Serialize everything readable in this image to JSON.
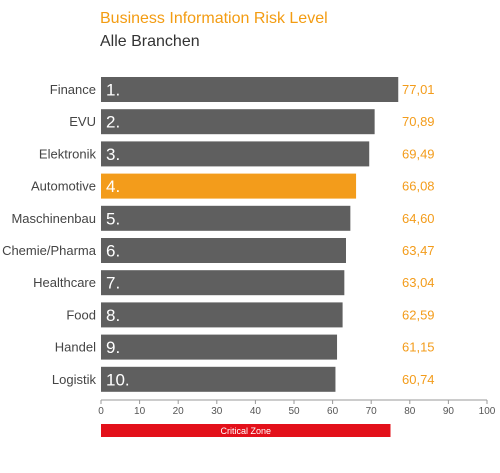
{
  "chart_data": {
    "type": "bar",
    "orientation": "horizontal",
    "title": "Business Information Risk Level",
    "subtitle": "Alle Branchen",
    "categories": [
      "Finance",
      "EVU",
      "Elektronik",
      "Automotive",
      "Maschinenbau",
      "Chemie/Pharma",
      "Healthcare",
      "Food",
      "Handel",
      "Logistik"
    ],
    "ranks": [
      "1.",
      "2.",
      "3.",
      "4.",
      "5.",
      "6.",
      "7.",
      "8.",
      "9.",
      "10."
    ],
    "values": [
      77.01,
      70.89,
      69.49,
      66.08,
      64.6,
      63.47,
      63.04,
      62.59,
      61.15,
      60.74
    ],
    "value_labels": [
      "77,01",
      "70,89",
      "69,49",
      "66,08",
      "64,60",
      "63,47",
      "63,04",
      "62,59",
      "61,15",
      "60,74"
    ],
    "highlight_index": 3,
    "xlim": [
      0,
      100
    ],
    "x_ticks": [
      "0",
      "10",
      "20",
      "30",
      "40",
      "50",
      "60",
      "70",
      "80",
      "90",
      "100"
    ],
    "critical_zone": {
      "label": "Critical  Zone",
      "range": [
        0,
        75
      ]
    },
    "grid": false,
    "legend": "none"
  },
  "colors": {
    "bar": "#5f5f5f",
    "highlight": "#f39c1b",
    "value_text": "#f39c1b",
    "title": "#f39c12",
    "critical_zone": "#e3101a"
  }
}
